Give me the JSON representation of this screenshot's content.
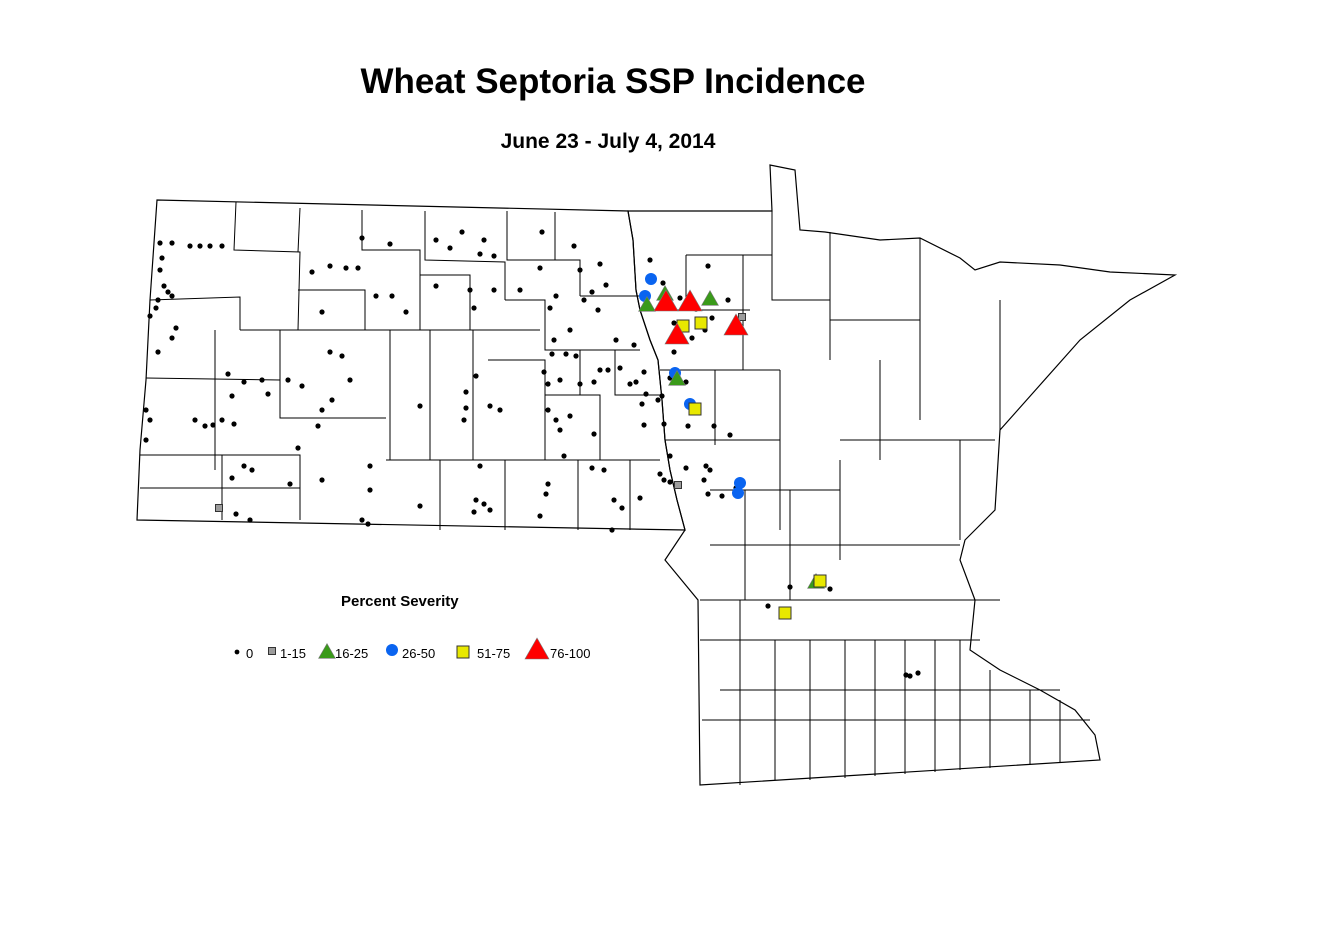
{
  "title": "Wheat Septoria SSP Incidence",
  "subtitle": "June 23 - July 4, 2014",
  "legend": {
    "title": "Percent Severity",
    "items": [
      {
        "label": "0",
        "symbol": "dot",
        "color": "#000000"
      },
      {
        "label": "1-15",
        "symbol": "square",
        "color": "#9c9c9c"
      },
      {
        "label": "16-25",
        "symbol": "triangle",
        "color": "#3a9a1a"
      },
      {
        "label": "26-50",
        "symbol": "circle",
        "color": "#0a64f0"
      },
      {
        "label": "51-75",
        "symbol": "square",
        "color": "#e8e800"
      },
      {
        "label": "76-100",
        "symbol": "triangle",
        "color": "#ff0000"
      }
    ]
  }
}
